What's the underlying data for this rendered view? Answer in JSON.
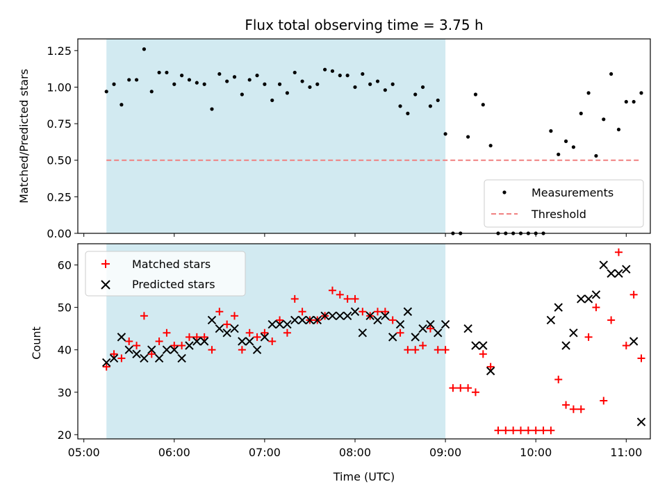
{
  "chart_data": [
    {
      "type": "scatter",
      "title": "Flux total observing time = 3.75 h",
      "xlabel": "",
      "ylabel": "Matched/Predicted stars",
      "ylim": [
        0,
        1.33
      ],
      "yticks": [
        "0.00",
        "0.25",
        "0.50",
        "0.75",
        "1.00",
        "1.25"
      ],
      "shaded_span": [
        "05:15",
        "09:00"
      ],
      "threshold": 0.5,
      "legend": {
        "position": "lower-right",
        "entries": [
          "Measurements",
          "Threshold"
        ]
      },
      "series": [
        {
          "name": "Measurements",
          "x": [
            "05:15",
            "05:20",
            "05:25",
            "05:30",
            "05:35",
            "05:40",
            "05:45",
            "05:50",
            "05:55",
            "06:00",
            "06:05",
            "06:10",
            "06:15",
            "06:20",
            "06:25",
            "06:30",
            "06:35",
            "06:40",
            "06:45",
            "06:50",
            "06:55",
            "07:00",
            "07:05",
            "07:10",
            "07:15",
            "07:20",
            "07:25",
            "07:30",
            "07:35",
            "07:40",
            "07:45",
            "07:50",
            "07:55",
            "08:00",
            "08:05",
            "08:10",
            "08:15",
            "08:20",
            "08:25",
            "08:30",
            "08:35",
            "08:40",
            "08:45",
            "08:50",
            "08:55",
            "09:00",
            "09:05",
            "09:10",
            "09:15",
            "09:20",
            "09:25",
            "09:30",
            "09:35",
            "09:40",
            "09:45",
            "09:50",
            "09:55",
            "10:00",
            "10:05",
            "10:10",
            "10:15",
            "10:20",
            "10:25",
            "10:30",
            "10:35",
            "10:40",
            "10:45",
            "10:50",
            "10:55",
            "11:00",
            "11:05",
            "11:10"
          ],
          "y": [
            0.97,
            1.02,
            0.88,
            1.05,
            1.05,
            1.26,
            0.97,
            1.1,
            1.1,
            1.02,
            1.08,
            1.05,
            1.03,
            1.02,
            0.85,
            1.09,
            1.04,
            1.07,
            0.95,
            1.05,
            1.08,
            1.02,
            0.91,
            1.02,
            0.96,
            1.1,
            1.04,
            1.0,
            1.02,
            1.12,
            1.11,
            1.08,
            1.08,
            1.0,
            1.09,
            1.02,
            1.04,
            0.98,
            1.02,
            0.87,
            0.82,
            0.95,
            1.0,
            0.87,
            0.91,
            0.68,
            0,
            0,
            0.66,
            0.95,
            0.88,
            0.6,
            0,
            0,
            0,
            0,
            0,
            0,
            0,
            0.7,
            0.54,
            0.63,
            0.59,
            0.82,
            0.96,
            0.53,
            0.78,
            1.09,
            0.71,
            0.9,
            0.9,
            0.96
          ]
        }
      ]
    },
    {
      "type": "scatter",
      "title": "",
      "xlabel": "Time (UTC)",
      "ylabel": "Count",
      "ylim": [
        19,
        65
      ],
      "yticks": [
        "20",
        "30",
        "40",
        "50",
        "60"
      ],
      "xticks": [
        "05:00",
        "06:00",
        "07:00",
        "08:00",
        "09:00",
        "10:00",
        "11:00"
      ],
      "shaded_span": [
        "05:15",
        "09:00"
      ],
      "legend": {
        "position": "upper-left",
        "entries": [
          "Matched stars",
          "Predicted stars"
        ]
      },
      "series": [
        {
          "name": "Matched stars",
          "x": [
            "05:15",
            "05:20",
            "05:25",
            "05:30",
            "05:35",
            "05:40",
            "05:45",
            "05:50",
            "05:55",
            "06:00",
            "06:05",
            "06:10",
            "06:15",
            "06:20",
            "06:25",
            "06:30",
            "06:35",
            "06:40",
            "06:45",
            "06:50",
            "06:55",
            "07:00",
            "07:05",
            "07:10",
            "07:15",
            "07:20",
            "07:25",
            "07:30",
            "07:35",
            "07:40",
            "07:45",
            "07:50",
            "07:55",
            "08:00",
            "08:05",
            "08:10",
            "08:15",
            "08:20",
            "08:25",
            "08:30",
            "08:35",
            "08:40",
            "08:45",
            "08:50",
            "08:55",
            "09:00",
            "09:05",
            "09:10",
            "09:15",
            "09:20",
            "09:25",
            "09:30",
            "09:35",
            "09:40",
            "09:45",
            "09:50",
            "09:55",
            "10:00",
            "10:05",
            "10:10",
            "10:15",
            "10:20",
            "10:25",
            "10:30",
            "10:35",
            "10:40",
            "10:45",
            "10:50",
            "10:55",
            "11:00",
            "11:05",
            "11:10"
          ],
          "y": [
            36,
            39,
            38,
            42,
            41,
            48,
            39,
            42,
            44,
            41,
            41,
            43,
            43,
            43,
            40,
            49,
            46,
            48,
            40,
            44,
            43,
            44,
            42,
            47,
            44,
            52,
            49,
            47,
            47,
            48,
            54,
            53,
            52,
            52,
            49,
            48,
            49,
            49,
            47,
            44,
            40,
            40,
            41,
            45,
            40,
            40,
            31,
            31,
            31,
            30,
            39,
            36,
            21,
            21,
            21,
            21,
            21,
            21,
            21,
            21,
            33,
            27,
            26,
            26,
            43,
            50,
            28,
            47,
            63,
            41,
            53,
            38
          ]
        },
        {
          "name": "Predicted stars",
          "x": [
            "05:15",
            "05:20",
            "05:25",
            "05:30",
            "05:35",
            "05:40",
            "05:45",
            "05:50",
            "05:55",
            "06:00",
            "06:05",
            "06:10",
            "06:15",
            "06:20",
            "06:25",
            "06:30",
            "06:35",
            "06:40",
            "06:45",
            "06:50",
            "06:55",
            "07:00",
            "07:05",
            "07:10",
            "07:15",
            "07:20",
            "07:25",
            "07:30",
            "07:35",
            "07:40",
            "07:45",
            "07:50",
            "07:55",
            "08:00",
            "08:05",
            "08:10",
            "08:15",
            "08:20",
            "08:25",
            "08:30",
            "08:35",
            "08:40",
            "08:45",
            "08:50",
            "08:55",
            "09:00",
            "09:05",
            "09:10",
            "09:15",
            "09:20",
            "09:25",
            "09:30",
            "09:35",
            "09:40",
            "09:45",
            "09:50",
            "09:55",
            "10:00",
            "10:05",
            "10:10",
            "10:15",
            "10:20",
            "10:25",
            "10:30",
            "10:35",
            "10:40",
            "10:45",
            "10:50",
            "10:55",
            "11:00",
            "11:05",
            "11:10"
          ],
          "y": [
            37,
            38,
            43,
            40,
            39,
            38,
            40,
            38,
            40,
            40,
            38,
            41,
            42,
            42,
            47,
            45,
            44,
            45,
            42,
            42,
            40,
            43,
            46,
            46,
            46,
            47,
            47,
            47,
            47,
            48,
            48,
            48,
            48,
            49,
            44,
            48,
            47,
            48,
            43,
            46,
            49,
            43,
            45,
            46,
            44,
            46,
            null,
            null,
            45,
            41,
            41,
            35,
            null,
            null,
            null,
            null,
            null,
            null,
            null,
            47,
            50,
            41,
            44,
            52,
            52,
            53,
            60,
            58,
            58,
            59,
            42,
            23
          ]
        }
      ]
    }
  ],
  "colors": {
    "span": "#add8e6",
    "threshold": "#f08080",
    "matched": "#ff0000",
    "predicted": "#000000",
    "measurement": "#000000"
  }
}
